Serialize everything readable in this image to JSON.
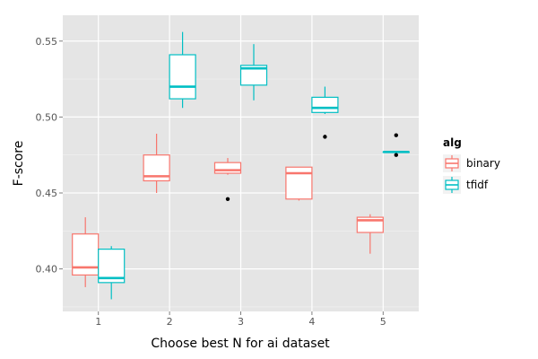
{
  "chart_data": {
    "type": "boxplot",
    "xlabel": "Choose best N for ai dataset",
    "ylabel": "F-score",
    "categories": [
      "1",
      "2",
      "3",
      "4",
      "5"
    ],
    "y_ticks": [
      "0.40",
      "0.45",
      "0.50",
      "0.55"
    ],
    "y_tick_values": [
      0.4,
      0.45,
      0.5,
      0.55
    ],
    "ylim": [
      0.372,
      0.567
    ],
    "grid": true,
    "legend": {
      "title": "alg",
      "position": "right",
      "entries": [
        "binary",
        "tfidf"
      ]
    },
    "colors": {
      "binary": "#F8766D",
      "tfidf": "#00BFC4",
      "panel": "#E5E5E5",
      "grid": "#FFFFFF",
      "outlier": "#000000"
    },
    "series": [
      {
        "name": "binary",
        "boxes": [
          {
            "category": "1",
            "min": 0.388,
            "q1": 0.396,
            "median": 0.401,
            "q3": 0.423,
            "max": 0.434,
            "outliers": []
          },
          {
            "category": "2",
            "min": 0.45,
            "q1": 0.458,
            "median": 0.461,
            "q3": 0.475,
            "max": 0.489,
            "outliers": []
          },
          {
            "category": "3",
            "min": 0.462,
            "q1": 0.463,
            "median": 0.465,
            "q3": 0.47,
            "max": 0.473,
            "outliers": [
              0.446
            ]
          },
          {
            "category": "4",
            "min": 0.445,
            "q1": 0.446,
            "median": 0.463,
            "q3": 0.467,
            "max": 0.467,
            "outliers": []
          },
          {
            "category": "5",
            "min": 0.41,
            "q1": 0.424,
            "median": 0.432,
            "q3": 0.434,
            "max": 0.436,
            "outliers": []
          }
        ]
      },
      {
        "name": "tfidf",
        "boxes": [
          {
            "category": "1",
            "min": 0.38,
            "q1": 0.391,
            "median": 0.394,
            "q3": 0.413,
            "max": 0.415,
            "outliers": []
          },
          {
            "category": "2",
            "min": 0.506,
            "q1": 0.512,
            "median": 0.52,
            "q3": 0.541,
            "max": 0.556,
            "outliers": []
          },
          {
            "category": "3",
            "min": 0.511,
            "q1": 0.521,
            "median": 0.532,
            "q3": 0.534,
            "max": 0.548,
            "outliers": []
          },
          {
            "category": "4",
            "min": 0.502,
            "q1": 0.503,
            "median": 0.506,
            "q3": 0.513,
            "max": 0.52,
            "outliers": [
              0.487
            ]
          },
          {
            "category": "5",
            "min": 0.477,
            "q1": 0.477,
            "median": 0.477,
            "q3": 0.477,
            "max": 0.477,
            "outliers": [
              0.488,
              0.475
            ]
          }
        ]
      }
    ]
  }
}
